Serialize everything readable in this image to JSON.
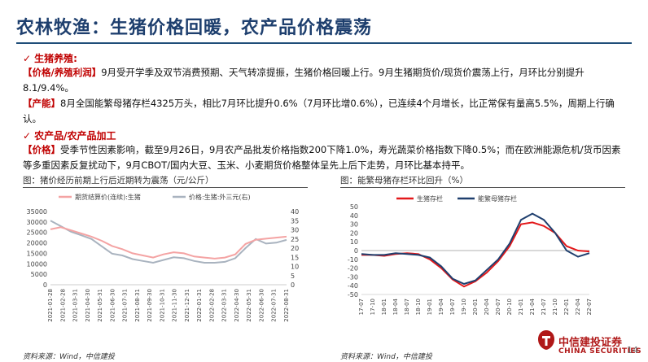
{
  "title": "农林牧渔：生猪价格回暖，农产品价格震荡",
  "sections": {
    "s1_label": "生猪养殖:",
    "s2_label": "农产品/农产品加工"
  },
  "paragraphs": {
    "p1_tag": "【价格/养殖利润】",
    "p1_text": "9月受开学季及双节消费预期、天气转凉提振，生猪价格回暖上行。9月生猪期货价/现货价震荡上行，月环比分别提升8.1/9.4%。",
    "p2_tag": "【产能】",
    "p2_text": "8月全国能繁母猪存栏4325万头，相比7月环比提升0.6%（7月环比增0.6%），已连续4个月增长，比正常保有量高5.5%，周期上行确认。",
    "p3_tag": "【价格】",
    "p3_text": "受季节性因素影响，截至9月26日，9月农产品批发价格指数200下降1.0%，寿光蔬菜价格指数下降0.5%；而在欧洲能源危机/货币因素等多重因素反复扰动下，9月CBOT/国内大豆、玉米、小麦期货价格整体呈先上后下走势，月环比基本持平。"
  },
  "fig1": {
    "caption": "图：猪价经历前期上行后近期转为震荡（元/公斤）",
    "source": "资料来源：Wind，中信建投"
  },
  "fig2": {
    "caption": "图：能繁母猪存栏环比回升（%）",
    "source": "资料来源：Wind，中信建投"
  },
  "page_number": "14",
  "logo": {
    "name_cn": "中信建投证券",
    "name_en": "CHINA SECURITIES"
  },
  "chart_data": [
    {
      "type": "line",
      "legend": "top",
      "x_ticks": [
        "2021-01-28",
        "2021-02-28",
        "2021-03-31",
        "2021-04-30",
        "2021-05-31",
        "2021-06-30",
        "2021-07-31",
        "2021-08-31",
        "2021-09-30",
        "2021-10-31",
        "2021-11-30",
        "2021-12-31",
        "2022-01-31",
        "2022-02-28",
        "2022-03-31",
        "2022-04-30",
        "2022-05-31",
        "2022-06-30",
        "2022-07-31",
        "2022-08-31"
      ],
      "y_left_ticks": [
        0,
        5000,
        10000,
        15000,
        20000,
        25000,
        30000,
        35000
      ],
      "y_right_ticks": [
        0,
        5,
        10,
        15,
        20,
        25,
        30,
        35,
        40
      ],
      "ylim_left": [
        0,
        35000
      ],
      "ylim_right": [
        0,
        40
      ],
      "colors": {
        "futures": "#f4a3a3",
        "spot": "#a9b3bf"
      },
      "series": [
        {
          "name": "期货结算价(连续):生猪",
          "axis": "left",
          "values": [
            26500,
            27500,
            26000,
            24500,
            23000,
            21000,
            18500,
            17000,
            15000,
            14000,
            13000,
            14500,
            15500,
            15000,
            13500,
            13000,
            12500,
            13000,
            14500,
            19500,
            21500,
            22000,
            22500,
            23000
          ]
        },
        {
          "name": "价格:生猪:外三元(右)",
          "axis": "right",
          "values": [
            35,
            32,
            29,
            27,
            25,
            21,
            17,
            16,
            14,
            13,
            12,
            13.5,
            15,
            14.5,
            13,
            12,
            12,
            12.5,
            14.5,
            20,
            25,
            22.5,
            23,
            24.5
          ]
        }
      ]
    },
    {
      "type": "line",
      "legend": "top",
      "x_ticks": [
        "17-07",
        "17-10",
        "18-01",
        "18-04",
        "18-07",
        "18-10",
        "19-01",
        "19-04",
        "19-07",
        "19-10",
        "20-01",
        "20-04",
        "20-07",
        "20-10",
        "21-01",
        "21-04",
        "21-07",
        "21-10",
        "22-01",
        "22-04",
        "22-07"
      ],
      "y_ticks": [
        -50,
        -40,
        -30,
        -20,
        -10,
        0,
        10,
        20,
        30,
        40,
        50
      ],
      "ylim": [
        -50,
        50
      ],
      "colors": {
        "production": "#e3191b",
        "sows": "#1f3f6e"
      },
      "series": [
        {
          "name": "生猪存栏",
          "x": [
            "17-07",
            "17-10",
            "18-01",
            "18-04",
            "18-07",
            "18-10",
            "19-01",
            "19-04",
            "19-07",
            "19-10",
            "20-01",
            "20-04",
            "20-07",
            "20-10",
            "21-01",
            "21-04",
            "21-07",
            "21-10",
            "22-01",
            "22-04",
            "22-07"
          ],
          "values": [
            -5,
            -5,
            -6,
            -4,
            -3,
            -4,
            -10,
            -20,
            -33,
            -41,
            -35,
            -25,
            -12,
            5,
            30,
            32,
            28,
            20,
            5,
            0,
            -1
          ]
        },
        {
          "name": "能繁母猪存栏",
          "x": [
            "17-07",
            "17-10",
            "18-01",
            "18-04",
            "18-07",
            "18-10",
            "19-01",
            "19-04",
            "19-07",
            "19-10",
            "20-01",
            "20-04",
            "20-07",
            "20-10",
            "21-01",
            "21-04",
            "21-07",
            "21-10",
            "22-01",
            "22-04",
            "22-07"
          ],
          "values": [
            -4,
            -5,
            -5,
            -3,
            -4,
            -5,
            -8,
            -18,
            -32,
            -38,
            -34,
            -22,
            -10,
            8,
            35,
            42,
            35,
            20,
            0,
            -7,
            -3
          ]
        }
      ]
    }
  ]
}
